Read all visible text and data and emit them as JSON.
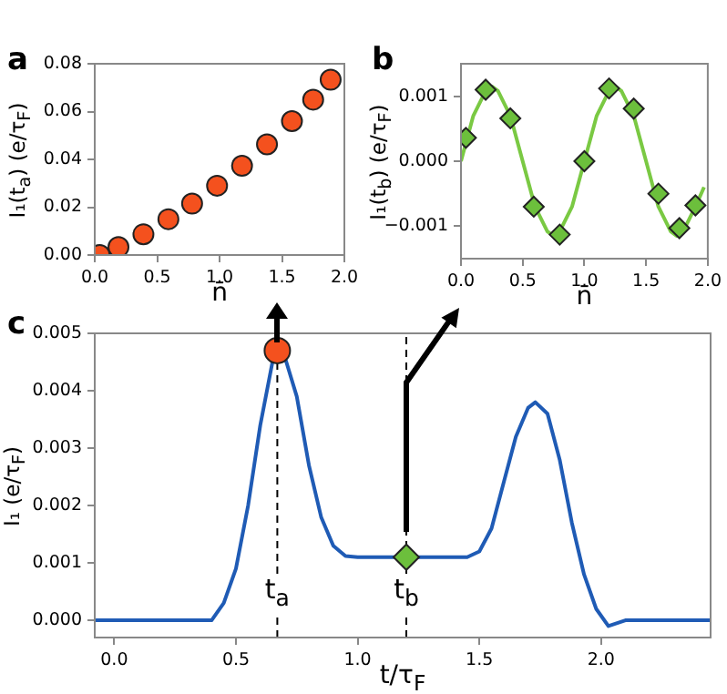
{
  "chart_data": [
    {
      "type": "scatter",
      "title": "a",
      "xlabel": "n̄",
      "ylabel": "I₁(t$_{a}$) (e/τ$_{F}$)",
      "xlim": [
        0,
        2
      ],
      "ylim": [
        0,
        0.08
      ],
      "xticks": [
        {
          "value": 0,
          "label": "0.0"
        },
        {
          "value": 0.5,
          "label": "0.5"
        },
        {
          "value": 1,
          "label": "1.0"
        },
        {
          "value": 1.5,
          "label": "1.5"
        },
        {
          "value": 2,
          "label": "2.0"
        }
      ],
      "yticks": [
        {
          "value": 0,
          "label": "0.00"
        },
        {
          "value": 0.02,
          "label": "0.02"
        },
        {
          "value": 0.04,
          "label": "0.04"
        },
        {
          "value": 0.06,
          "label": "0.06"
        },
        {
          "value": 0.08,
          "label": "0.08"
        }
      ],
      "marker": "circle",
      "series": [
        {
          "color": "#f4511e",
          "x": [
            0.04,
            0.19,
            0.39,
            0.59,
            0.78,
            0.98,
            1.18,
            1.38,
            1.58,
            1.75,
            1.89
          ],
          "values": [
            0.0,
            0.0033,
            0.0087,
            0.015,
            0.0215,
            0.029,
            0.0373,
            0.0463,
            0.056,
            0.065,
            0.0733
          ]
        }
      ]
    },
    {
      "type": "scatter",
      "title": "b",
      "xlabel": "n̄",
      "ylabel": "I₁(t$_{b}$) (e/τ$_{F}$)",
      "xlim": [
        0,
        2
      ],
      "ylim": [
        -0.0015,
        0.0015
      ],
      "xticks": [
        {
          "value": 0,
          "label": "0.0"
        },
        {
          "value": 0.5,
          "label": "0.5"
        },
        {
          "value": 1,
          "label": "1.0"
        },
        {
          "value": 1.5,
          "label": "1.5"
        },
        {
          "value": 2,
          "label": "2.0"
        }
      ],
      "yticks": [
        {
          "value": -0.001,
          "label": "−0.001"
        },
        {
          "value": 0,
          "label": "0.000"
        },
        {
          "value": 0.001,
          "label": "0.001"
        }
      ],
      "marker": "diamond",
      "series": [
        {
          "type": "line",
          "marker": "none",
          "color": "#7ac943",
          "x": [
            0,
            0.1,
            0.2,
            0.25,
            0.3,
            0.4,
            0.5,
            0.6,
            0.7,
            0.75,
            0.8,
            0.9,
            1.0,
            1.1,
            1.2,
            1.25,
            1.3,
            1.4,
            1.5,
            1.6,
            1.7,
            1.75,
            1.8,
            1.9,
            1.97
          ],
          "values": [
            0.0,
            0.0007,
            0.00108,
            0.00115,
            0.00108,
            0.0007,
            0.0,
            -0.0007,
            -0.00108,
            -0.00115,
            -0.00108,
            -0.0007,
            0.0,
            0.0007,
            0.00108,
            0.00115,
            0.00108,
            0.0007,
            0.0,
            -0.0007,
            -0.00108,
            -0.00115,
            -0.00108,
            -0.0007,
            -0.0004
          ]
        },
        {
          "type": "scatter",
          "color": "#6cbf3c",
          "x": [
            0.04,
            0.2,
            0.4,
            0.59,
            0.8,
            1.0,
            1.2,
            1.4,
            1.6,
            1.77,
            1.9
          ],
          "values": [
            0.00036,
            0.0011,
            0.00066,
            -0.0007,
            -0.00113,
            0.0,
            0.00112,
            0.00081,
            -0.0005,
            -0.00103,
            -0.00068
          ]
        }
      ]
    },
    {
      "type": "line",
      "title": "c",
      "xlabel": "t/τ$_{F}$",
      "ylabel": "I₁ (e/τ$_{F}$)",
      "xlim": [
        -0.08,
        2.45
      ],
      "ylim": [
        -0.0003,
        0.005
      ],
      "xticks": [
        {
          "value": 0,
          "label": "0.0"
        },
        {
          "value": 0.5,
          "label": "0.5"
        },
        {
          "value": 1,
          "label": "1.0"
        },
        {
          "value": 1.5,
          "label": "1.5"
        },
        {
          "value": 2,
          "label": "2.0"
        }
      ],
      "yticks": [
        {
          "value": 0,
          "label": "0.000"
        },
        {
          "value": 0.001,
          "label": "0.001"
        },
        {
          "value": 0.002,
          "label": "0.002"
        },
        {
          "value": 0.003,
          "label": "0.003"
        },
        {
          "value": 0.004,
          "label": "0.004"
        },
        {
          "value": 0.005,
          "label": "0.005"
        }
      ],
      "series": [
        {
          "type": "line",
          "marker": "none",
          "color": "#1f5bb5",
          "x": [
            -0.08,
            0.3,
            0.4,
            0.45,
            0.5,
            0.55,
            0.6,
            0.65,
            0.67,
            0.7,
            0.75,
            0.8,
            0.85,
            0.9,
            0.95,
            1.0,
            1.2,
            1.45,
            1.5,
            1.55,
            1.6,
            1.65,
            1.7,
            1.73,
            1.78,
            1.83,
            1.88,
            1.93,
            1.98,
            2.03,
            2.1,
            2.45
          ],
          "values": [
            0,
            0,
            0,
            0.0003,
            0.0009,
            0.002,
            0.0034,
            0.0045,
            0.0047,
            0.0046,
            0.0039,
            0.0027,
            0.0018,
            0.0013,
            0.00112,
            0.0011,
            0.0011,
            0.0011,
            0.0012,
            0.0016,
            0.0024,
            0.0032,
            0.0037,
            0.0038,
            0.0036,
            0.0028,
            0.0017,
            0.0008,
            0.0002,
            -0.0001,
            0,
            0
          ]
        },
        {
          "type": "scatter",
          "marker": "circle",
          "color": "#f4511e",
          "x": [
            0.67
          ],
          "values": [
            0.0047
          ]
        },
        {
          "type": "scatter",
          "marker": "diamond",
          "color": "#6cbf3c",
          "x": [
            1.2
          ],
          "values": [
            0.0011
          ]
        }
      ],
      "ref_lines": [
        {
          "axis": "x",
          "value": 0.67,
          "label": "t$_{a}$",
          "color": "#000000",
          "line_style": "dashed"
        },
        {
          "axis": "x",
          "value": 1.2,
          "label": "t$_{b}$",
          "color": "#000000",
          "line_style": "dashed"
        }
      ]
    }
  ]
}
